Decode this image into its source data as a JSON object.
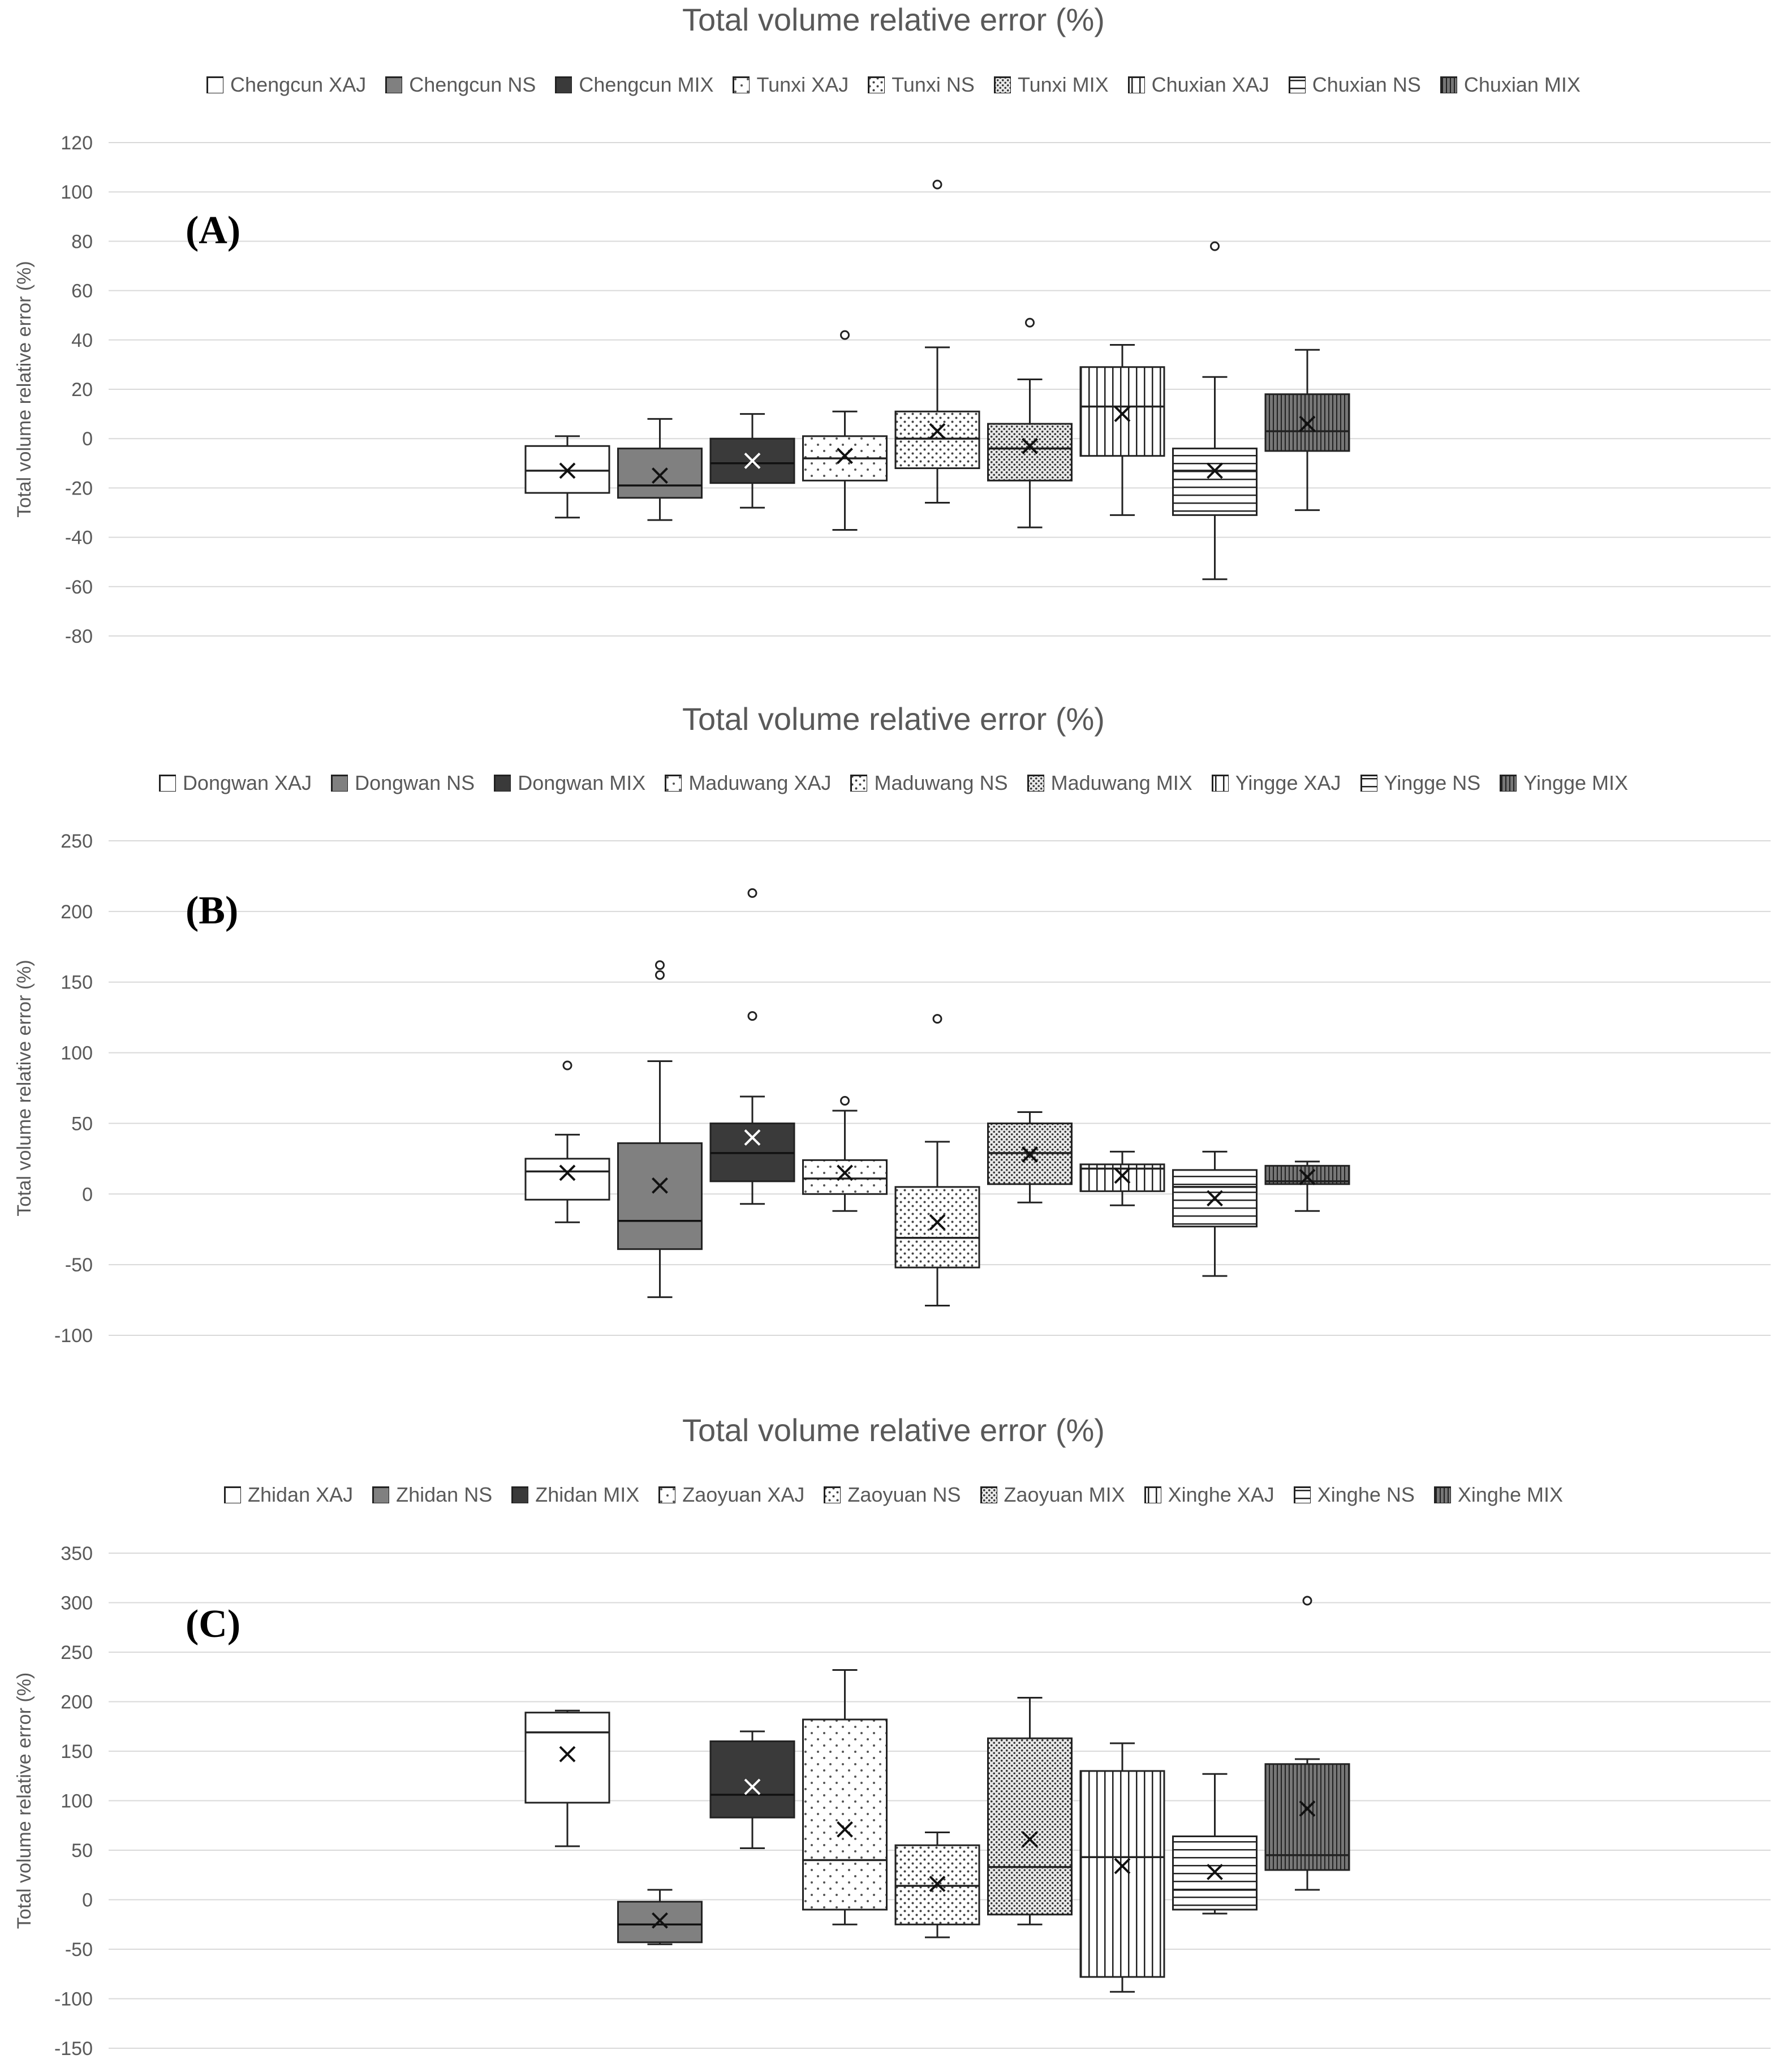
{
  "chart_data": [
    {
      "type": "box",
      "panel_label": "(A)",
      "title": "Total volume relative error (%)",
      "ylabel": "Total volume relative error (%)",
      "ylim": [
        -80,
        120
      ],
      "yticks": [
        120,
        100,
        80,
        60,
        40,
        20,
        0,
        -20,
        -40,
        -60,
        -80
      ],
      "series": [
        {
          "name": "Chengcun XAJ",
          "pattern": "white",
          "min": -32,
          "q1": -22,
          "median": -13,
          "q3": -3,
          "max": 1,
          "mean": -13,
          "outliers": []
        },
        {
          "name": "Chengcun NS",
          "pattern": "gray",
          "min": -33,
          "q1": -24,
          "median": -19,
          "q3": -4,
          "max": 8,
          "mean": -15,
          "outliers": []
        },
        {
          "name": "Chengcun MIX",
          "pattern": "dark",
          "min": -28,
          "q1": -18,
          "median": -10,
          "q3": 0,
          "max": 10,
          "mean": -9,
          "outliers": []
        },
        {
          "name": "Tunxi XAJ",
          "pattern": "dots-sparse",
          "min": -37,
          "q1": -17,
          "median": -8,
          "q3": 1,
          "max": 11,
          "mean": -7,
          "outliers": [
            42
          ]
        },
        {
          "name": "Tunxi NS",
          "pattern": "dots-medium",
          "min": -26,
          "q1": -12,
          "median": 0,
          "q3": 11,
          "max": 37,
          "mean": 3,
          "outliers": [
            103
          ]
        },
        {
          "name": "Tunxi MIX",
          "pattern": "dots-dense",
          "min": -36,
          "q1": -17,
          "median": -4,
          "q3": 6,
          "max": 24,
          "mean": -3,
          "outliers": [
            47
          ]
        },
        {
          "name": "Chuxian XAJ",
          "pattern": "vlines",
          "min": -31,
          "q1": -7,
          "median": 13,
          "q3": 29,
          "max": 38,
          "mean": 10,
          "outliers": []
        },
        {
          "name": "Chuxian NS",
          "pattern": "hlines",
          "min": -57,
          "q1": -31,
          "median": -13,
          "q3": -4,
          "max": 25,
          "mean": -13,
          "outliers": [
            78
          ]
        },
        {
          "name": "Chuxian MIX",
          "pattern": "vlines-dense",
          "min": -29,
          "q1": -5,
          "median": 3,
          "q3": 18,
          "max": 36,
          "mean": 6,
          "outliers": []
        }
      ]
    },
    {
      "type": "box",
      "panel_label": "(B)",
      "title": "Total volume relative error (%)",
      "ylabel": "Total volume relative error (%)",
      "ylim": [
        -100,
        250
      ],
      "yticks": [
        250,
        200,
        150,
        100,
        50,
        0,
        -50,
        -100
      ],
      "series": [
        {
          "name": "Dongwan XAJ",
          "pattern": "white",
          "min": -20,
          "q1": -4,
          "median": 16,
          "q3": 25,
          "max": 42,
          "mean": 15,
          "outliers": [
            91
          ]
        },
        {
          "name": "Dongwan NS",
          "pattern": "gray",
          "min": -73,
          "q1": -39,
          "median": -19,
          "q3": 36,
          "max": 94,
          "mean": 6,
          "outliers": [
            155,
            162
          ]
        },
        {
          "name": "Dongwan MIX",
          "pattern": "dark",
          "min": -7,
          "q1": 9,
          "median": 29,
          "q3": 50,
          "max": 69,
          "mean": 40,
          "outliers": [
            126,
            213
          ]
        },
        {
          "name": "Maduwang XAJ",
          "pattern": "dots-sparse",
          "min": -12,
          "q1": 0,
          "median": 11,
          "q3": 24,
          "max": 59,
          "mean": 15,
          "outliers": [
            66
          ]
        },
        {
          "name": "Maduwang NS",
          "pattern": "dots-medium",
          "min": -79,
          "q1": -52,
          "median": -31,
          "q3": 5,
          "max": 37,
          "mean": -20,
          "outliers": [
            124
          ]
        },
        {
          "name": "Maduwang MIX",
          "pattern": "dots-dense",
          "min": -6,
          "q1": 7,
          "median": 29,
          "q3": 50,
          "max": 58,
          "mean": 28,
          "outliers": []
        },
        {
          "name": "Yingge XAJ",
          "pattern": "vlines",
          "min": -8,
          "q1": 2,
          "median": 18,
          "q3": 21,
          "max": 30,
          "mean": 13,
          "outliers": []
        },
        {
          "name": "Yingge NS",
          "pattern": "hlines",
          "min": -58,
          "q1": -23,
          "median": 5,
          "q3": 17,
          "max": 30,
          "mean": -3,
          "outliers": []
        },
        {
          "name": "Yingge MIX",
          "pattern": "vlines-dense",
          "min": -12,
          "q1": 7,
          "median": 9,
          "q3": 20,
          "max": 23,
          "mean": 12,
          "outliers": []
        }
      ]
    },
    {
      "type": "box",
      "panel_label": "(C)",
      "title": "Total volume relative error (%)",
      "ylabel": "Total volume relative error (%)",
      "ylim": [
        -150,
        350
      ],
      "yticks": [
        350,
        300,
        250,
        200,
        150,
        100,
        50,
        0,
        -50,
        -100,
        -150
      ],
      "series": [
        {
          "name": "Zhidan XAJ",
          "pattern": "white",
          "min": 54,
          "q1": 98,
          "median": 169,
          "q3": 189,
          "max": 191,
          "mean": 147,
          "outliers": []
        },
        {
          "name": "Zhidan NS",
          "pattern": "gray",
          "min": -45,
          "q1": -43,
          "median": -25,
          "q3": -2,
          "max": 10,
          "mean": -21,
          "outliers": []
        },
        {
          "name": "Zhidan MIX",
          "pattern": "dark",
          "min": 52,
          "q1": 83,
          "median": 106,
          "q3": 160,
          "max": 170,
          "mean": 114,
          "outliers": []
        },
        {
          "name": "Zaoyuan XAJ",
          "pattern": "dots-sparse",
          "min": -25,
          "q1": -10,
          "median": 40,
          "q3": 182,
          "max": 232,
          "mean": 71,
          "outliers": []
        },
        {
          "name": "Zaoyuan NS",
          "pattern": "dots-medium",
          "min": -38,
          "q1": -25,
          "median": 14,
          "q3": 55,
          "max": 68,
          "mean": 16,
          "outliers": []
        },
        {
          "name": "Zaoyuan MIX",
          "pattern": "dots-dense",
          "min": -25,
          "q1": -15,
          "median": 33,
          "q3": 163,
          "max": 204,
          "mean": 61,
          "outliers": []
        },
        {
          "name": "Xinghe XAJ",
          "pattern": "vlines",
          "min": -93,
          "q1": -78,
          "median": 43,
          "q3": 130,
          "max": 158,
          "mean": 34,
          "outliers": []
        },
        {
          "name": "Xinghe NS",
          "pattern": "hlines",
          "min": -14,
          "q1": -10,
          "median": 10,
          "q3": 64,
          "max": 127,
          "mean": 28,
          "outliers": []
        },
        {
          "name": "Xinghe MIX",
          "pattern": "vlines-dense",
          "min": 10,
          "q1": 30,
          "median": 45,
          "q3": 137,
          "max": 142,
          "mean": 92,
          "outliers": [
            302
          ]
        }
      ]
    }
  ]
}
